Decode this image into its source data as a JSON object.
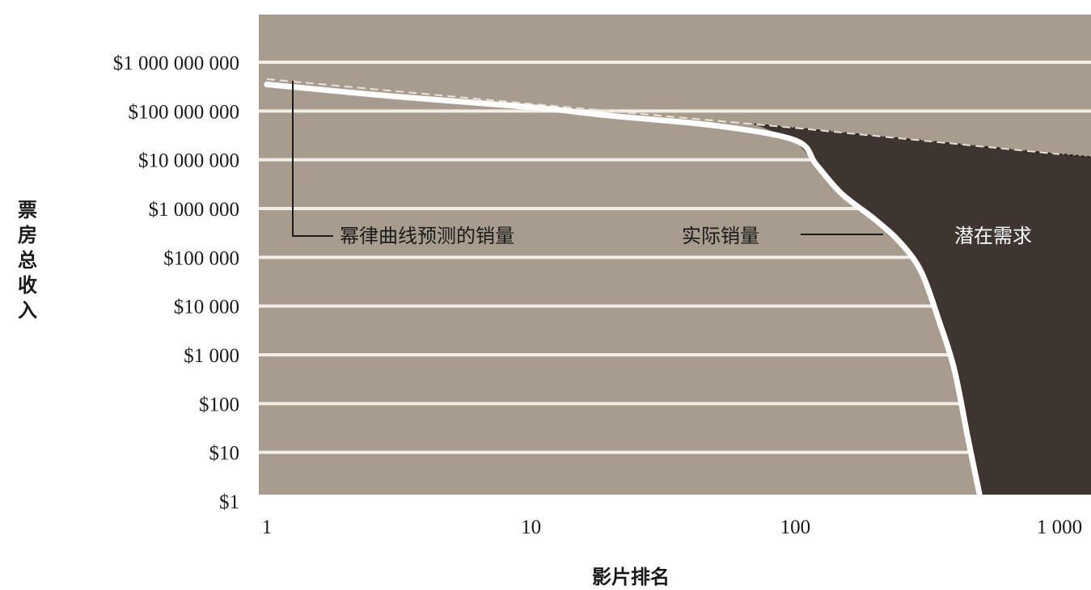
{
  "chart_data": {
    "type": "line",
    "ylabel": "票房总收入",
    "xlabel": "影片排名",
    "x_scale": "log",
    "y_scale": "log",
    "xlim": [
      1,
      1000
    ],
    "ylim": [
      1,
      1000000000
    ],
    "x_ticks": [
      {
        "value": 1,
        "label": "1"
      },
      {
        "value": 10,
        "label": "10"
      },
      {
        "value": 100,
        "label": "100"
      },
      {
        "value": 1000,
        "label": "1 000"
      }
    ],
    "y_ticks": [
      {
        "value": 1,
        "label": "$1"
      },
      {
        "value": 10,
        "label": "$10"
      },
      {
        "value": 100,
        "label": "$100"
      },
      {
        "value": 1000,
        "label": "$1 000"
      },
      {
        "value": 10000,
        "label": "$10 000"
      },
      {
        "value": 100000,
        "label": "$100 000"
      },
      {
        "value": 1000000,
        "label": "$1 000 000"
      },
      {
        "value": 10000000,
        "label": "$10 000 000"
      },
      {
        "value": 100000000,
        "label": "$100 000 000"
      },
      {
        "value": 1000000000,
        "label": "$1 000 000 000"
      }
    ],
    "grid": true,
    "series": [
      {
        "name": "幂律曲线预测的销量",
        "style": "dashed",
        "x": [
          1,
          10,
          100,
          1000
        ],
        "y": [
          450000000,
          140000000,
          45000000,
          13000000
        ]
      },
      {
        "name": "实际销量",
        "style": "solid",
        "x": [
          1,
          3,
          10,
          20,
          50,
          100,
          120,
          150,
          200,
          250,
          300,
          350,
          400,
          450,
          500
        ],
        "y": [
          350000000,
          200000000,
          120000000,
          80000000,
          50000000,
          25000000,
          8000000,
          2000000,
          600000,
          200000,
          50000,
          5000,
          500,
          20,
          1
        ]
      }
    ],
    "annotations": {
      "predicted_label": "幂律曲线预测的销量",
      "actual_label": "实际销量",
      "gap_label": "潜在需求"
    },
    "colors": {
      "plot_background": "#a89c8e",
      "gap_fill": "#3e3530",
      "grid": "#f2ede6",
      "actual_line": "#ffffff"
    }
  }
}
